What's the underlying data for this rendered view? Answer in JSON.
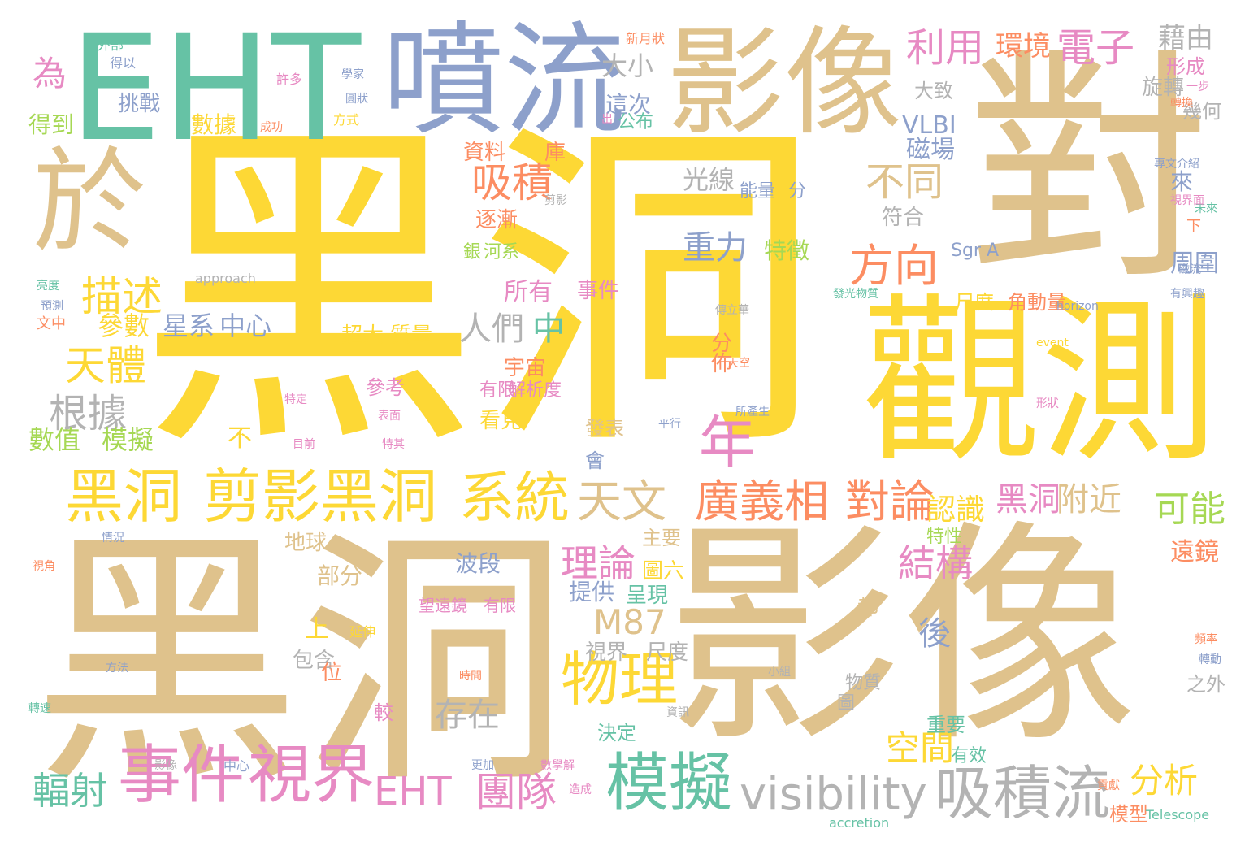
{
  "palette": {
    "gold": "#FDD835",
    "tan": "#DFC28C",
    "teal": "#66C2A5",
    "blue": "#8DA0CB",
    "orange": "#FC8D62",
    "pink": "#E78AC3",
    "green": "#A6D854",
    "yellow": "#FFD92F",
    "gray": "#B3B3B3",
    "background": "#FFFFFF"
  },
  "words": [
    {
      "t": "黑洞",
      "c": "gold"
    },
    {
      "t": "黑洞",
      "c": "tan"
    },
    {
      "t": "影像",
      "c": "tan"
    },
    {
      "t": "對",
      "c": "tan"
    },
    {
      "t": "觀測",
      "c": "gold"
    },
    {
      "t": "EHT",
      "c": "teal"
    },
    {
      "t": "噴流",
      "c": "blue"
    },
    {
      "t": "影像",
      "c": "tan"
    },
    {
      "t": "於",
      "c": "tan"
    },
    {
      "t": "黑洞",
      "c": "gold"
    },
    {
      "t": "剪影黑洞",
      "c": "gold"
    },
    {
      "t": "系統",
      "c": "gold"
    },
    {
      "t": "事件",
      "c": "pink"
    },
    {
      "t": "視界",
      "c": "pink"
    },
    {
      "t": "visibility",
      "c": "gray"
    },
    {
      "t": "吸積流",
      "c": "gray"
    },
    {
      "t": "模擬",
      "c": "teal"
    },
    {
      "t": "廣義相",
      "c": "orange"
    },
    {
      "t": "對論",
      "c": "orange"
    },
    {
      "t": "天文",
      "c": "tan"
    },
    {
      "t": "年",
      "c": "pink"
    },
    {
      "t": "物理",
      "c": "gold"
    },
    {
      "t": "利用",
      "c": "pink"
    },
    {
      "t": "電子",
      "c": "pink"
    },
    {
      "t": "方向",
      "c": "orange"
    },
    {
      "t": "不同",
      "c": "tan"
    },
    {
      "t": "吸積",
      "c": "orange"
    },
    {
      "t": "描述",
      "c": "gold"
    },
    {
      "t": "天體",
      "c": "gold"
    },
    {
      "t": "根據",
      "c": "gray"
    },
    {
      "t": "EHT",
      "c": "pink"
    },
    {
      "t": "團隊",
      "c": "pink"
    },
    {
      "t": "輻射",
      "c": "teal"
    },
    {
      "t": "結構",
      "c": "pink"
    },
    {
      "t": "理論",
      "c": "pink"
    },
    {
      "t": "M87",
      "c": "tan"
    },
    {
      "t": "分析",
      "c": "gold"
    },
    {
      "t": "可能",
      "c": "green"
    },
    {
      "t": "為",
      "c": "pink"
    },
    {
      "t": "黑洞",
      "c": "pink"
    },
    {
      "t": "附近",
      "c": "tan"
    },
    {
      "t": "空間",
      "c": "gold"
    },
    {
      "t": "後",
      "c": "blue"
    },
    {
      "t": "存在",
      "c": "gray"
    },
    {
      "t": "環境",
      "c": "orange"
    },
    {
      "t": "藉由",
      "c": "gray"
    },
    {
      "t": "大小",
      "c": "gray"
    },
    {
      "t": "資料",
      "c": "orange"
    },
    {
      "t": "庫",
      "c": "orange"
    },
    {
      "t": "光線",
      "c": "gray"
    },
    {
      "t": "重力",
      "c": "blue"
    },
    {
      "t": "認識",
      "c": "gold"
    },
    {
      "t": "數值",
      "c": "green"
    },
    {
      "t": "模擬",
      "c": "green"
    },
    {
      "t": "參數",
      "c": "gold"
    },
    {
      "t": "星系",
      "c": "blue"
    },
    {
      "t": "中心",
      "c": "blue"
    },
    {
      "t": "人們",
      "c": "gray"
    },
    {
      "t": "中",
      "c": "teal"
    },
    {
      "t": "挑戰",
      "c": "blue"
    },
    {
      "t": "得到",
      "c": "green"
    },
    {
      "t": "數據",
      "c": "gold"
    },
    {
      "t": "這次",
      "c": "blue"
    },
    {
      "t": "公布",
      "c": "teal"
    },
    {
      "t": "VLBI",
      "c": "blue"
    },
    {
      "t": "磁場",
      "c": "blue"
    },
    {
      "t": "能量",
      "c": "blue"
    },
    {
      "t": "分",
      "c": "blue"
    },
    {
      "t": "符合",
      "c": "gray"
    },
    {
      "t": "逐漸",
      "c": "orange"
    },
    {
      "t": "銀",
      "c": "green"
    },
    {
      "t": "河系",
      "c": "green"
    },
    {
      "t": "特徵",
      "c": "green"
    },
    {
      "t": "Sgr A",
      "c": "blue"
    },
    {
      "t": "所有",
      "c": "pink"
    },
    {
      "t": "事件",
      "c": "pink"
    },
    {
      "t": "尺度",
      "c": "gold"
    },
    {
      "t": "角動量",
      "c": "orange"
    },
    {
      "t": "周圍",
      "c": "blue"
    },
    {
      "t": "來",
      "c": "blue"
    },
    {
      "t": "幾何",
      "c": "gray"
    },
    {
      "t": "旋轉",
      "c": "gray"
    },
    {
      "t": "形成",
      "c": "pink"
    },
    {
      "t": "大致",
      "c": "gray"
    },
    {
      "t": "超大",
      "c": "gold"
    },
    {
      "t": "質量",
      "c": "gold"
    },
    {
      "t": "分",
      "c": "orange"
    },
    {
      "t": "佈",
      "c": "orange"
    },
    {
      "t": "宇宙",
      "c": "orange"
    },
    {
      "t": "參考",
      "c": "pink"
    },
    {
      "t": "有限",
      "c": "pink"
    },
    {
      "t": "解析度",
      "c": "pink"
    },
    {
      "t": "看見",
      "c": "gold"
    },
    {
      "t": "發表",
      "c": "tan"
    },
    {
      "t": "會",
      "c": "blue"
    },
    {
      "t": "不",
      "c": "gold"
    },
    {
      "t": "地球",
      "c": "tan"
    },
    {
      "t": "部分",
      "c": "tan"
    },
    {
      "t": "上",
      "c": "gold"
    },
    {
      "t": "包含",
      "c": "gray"
    },
    {
      "t": "位",
      "c": "orange"
    },
    {
      "t": "波段",
      "c": "blue"
    },
    {
      "t": "提供",
      "c": "blue"
    },
    {
      "t": "呈現",
      "c": "teal"
    },
    {
      "t": "圖六",
      "c": "gold"
    },
    {
      "t": "主要",
      "c": "tan"
    },
    {
      "t": "視界",
      "c": "gray"
    },
    {
      "t": "尺度",
      "c": "gray"
    },
    {
      "t": "都",
      "c": "tan"
    },
    {
      "t": "物質",
      "c": "gray"
    },
    {
      "t": "圖",
      "c": "gray"
    },
    {
      "t": "決定",
      "c": "teal"
    },
    {
      "t": "重要",
      "c": "teal"
    },
    {
      "t": "特性",
      "c": "green"
    },
    {
      "t": "有效",
      "c": "teal"
    },
    {
      "t": "遠鏡",
      "c": "orange"
    },
    {
      "t": "之外",
      "c": "gray"
    },
    {
      "t": "模型",
      "c": "orange"
    },
    {
      "t": "望遠鏡",
      "c": "pink"
    },
    {
      "t": "有限",
      "c": "pink"
    },
    {
      "t": "較",
      "c": "pink"
    },
    {
      "t": "外部",
      "c": "teal"
    },
    {
      "t": "得以",
      "c": "blue"
    },
    {
      "t": "許多",
      "c": "pink"
    },
    {
      "t": "方式",
      "c": "gold"
    },
    {
      "t": "成功",
      "c": "orange"
    },
    {
      "t": "新月狀",
      "c": "orange"
    },
    {
      "t": "學家",
      "c": "blue"
    },
    {
      "t": "圓狀",
      "c": "blue"
    },
    {
      "t": "出",
      "c": "pink"
    },
    {
      "t": "approach",
      "c": "gray"
    },
    {
      "t": "horizon",
      "c": "blue"
    },
    {
      "t": "event",
      "c": "gold"
    },
    {
      "t": "accretion",
      "c": "teal"
    },
    {
      "t": "Telescope",
      "c": "teal"
    },
    {
      "t": "一步",
      "c": "pink"
    },
    {
      "t": "轉換",
      "c": "orange"
    },
    {
      "t": "亮度",
      "c": "teal"
    },
    {
      "t": "預測",
      "c": "blue"
    },
    {
      "t": "文中",
      "c": "orange"
    },
    {
      "t": "未來",
      "c": "teal"
    },
    {
      "t": "轉動",
      "c": "blue"
    },
    {
      "t": "發光物質",
      "c": "teal"
    },
    {
      "t": "有興趣",
      "c": "blue"
    },
    {
      "t": "下",
      "c": "orange"
    },
    {
      "t": "影像",
      "c": "gray"
    },
    {
      "t": "中心",
      "c": "blue"
    },
    {
      "t": "轉速",
      "c": "teal"
    },
    {
      "t": "方法",
      "c": "blue"
    },
    {
      "t": "情況",
      "c": "blue"
    },
    {
      "t": "視角",
      "c": "orange"
    },
    {
      "t": "數學解",
      "c": "pink"
    },
    {
      "t": "造成",
      "c": "pink"
    },
    {
      "t": "貢獻",
      "c": "orange"
    },
    {
      "t": "特其",
      "c": "pink"
    },
    {
      "t": "平行",
      "c": "blue"
    },
    {
      "t": "所產生",
      "c": "blue"
    },
    {
      "t": "形狀",
      "c": "pink"
    },
    {
      "t": "特定",
      "c": "pink"
    },
    {
      "t": "表面",
      "c": "pink"
    },
    {
      "t": "目前",
      "c": "pink"
    },
    {
      "t": "傳立華",
      "c": "gray"
    },
    {
      "t": "天空",
      "c": "orange"
    },
    {
      "t": "頻率",
      "c": "orange"
    },
    {
      "t": "時間",
      "c": "orange"
    },
    {
      "t": "資訊",
      "c": "gray"
    },
    {
      "t": "小組",
      "c": "gray"
    },
    {
      "t": "專文介紹",
      "c": "blue"
    },
    {
      "t": "視界面",
      "c": "pink"
    },
    {
      "t": "磁流",
      "c": "blue"
    },
    {
      "t": "剪影",
      "c": "gray"
    },
    {
      "t": "延伸",
      "c": "gold"
    },
    {
      "t": "更加",
      "c": "blue"
    },
    {
      "t": "可以",
      "c": "pink"
    }
  ]
}
